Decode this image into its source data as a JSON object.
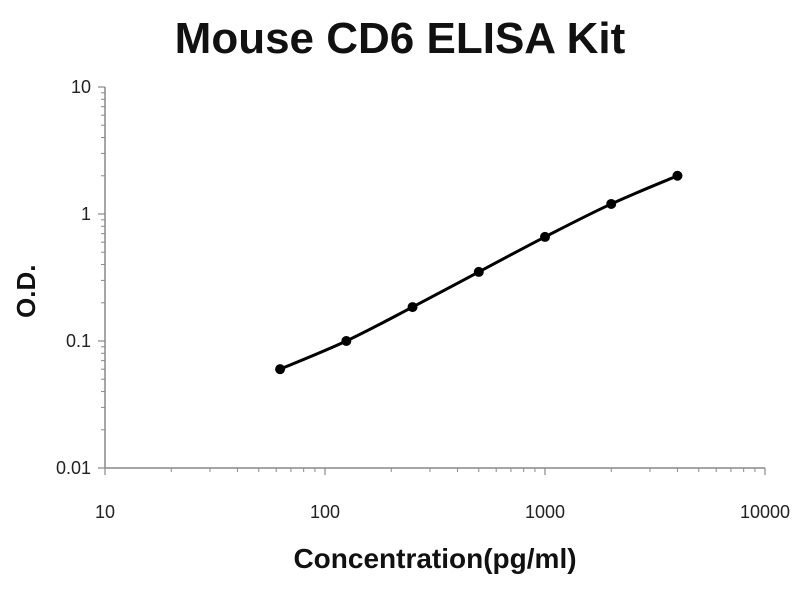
{
  "chart_data": {
    "type": "line",
    "title": "Mouse CD6 ELISA Kit",
    "xlabel": "Concentration(pg/ml)",
    "ylabel": "O.D.",
    "xscale": "log",
    "yscale": "log",
    "xlim": [
      10,
      10000
    ],
    "ylim": [
      0.01,
      10
    ],
    "x_ticks": [
      "10",
      "100",
      "1000",
      "10000"
    ],
    "y_ticks": [
      "0.01",
      "0.1",
      "1",
      "10"
    ],
    "grid": false,
    "legend": "none",
    "series": [
      {
        "x": [
          62.5,
          125,
          250,
          500,
          1000,
          2000,
          4000
        ],
        "values": [
          0.06,
          0.1,
          0.185,
          0.35,
          0.66,
          1.2,
          2.0
        ]
      }
    ],
    "colors": {
      "line": "#000000",
      "axis": "#888888"
    }
  }
}
